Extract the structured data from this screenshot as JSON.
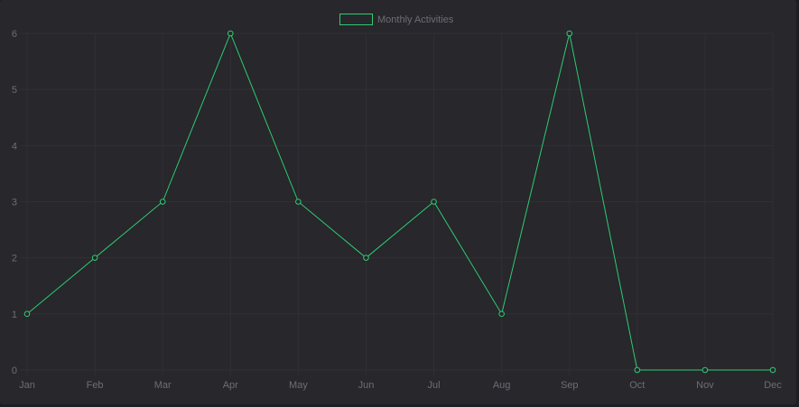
{
  "chart_data": {
    "type": "line",
    "categories": [
      "Jan",
      "Feb",
      "Mar",
      "Apr",
      "May",
      "Jun",
      "Jul",
      "Aug",
      "Sep",
      "Oct",
      "Nov",
      "Dec"
    ],
    "series": [
      {
        "name": "Monthly Activities",
        "values": [
          1,
          2,
          3,
          6,
          3,
          2,
          3,
          1,
          6,
          0,
          0,
          0
        ],
        "color": "#2ecc71"
      }
    ],
    "yticks": [
      "0",
      "1",
      "2",
      "3",
      "4",
      "5",
      "6"
    ],
    "ylim": [
      0,
      6
    ],
    "grid": true,
    "legend": "top-center"
  },
  "colors": {
    "background": "#27272c",
    "grid": "#303035",
    "text": "#6d6d74",
    "line": "#2ecc71"
  }
}
